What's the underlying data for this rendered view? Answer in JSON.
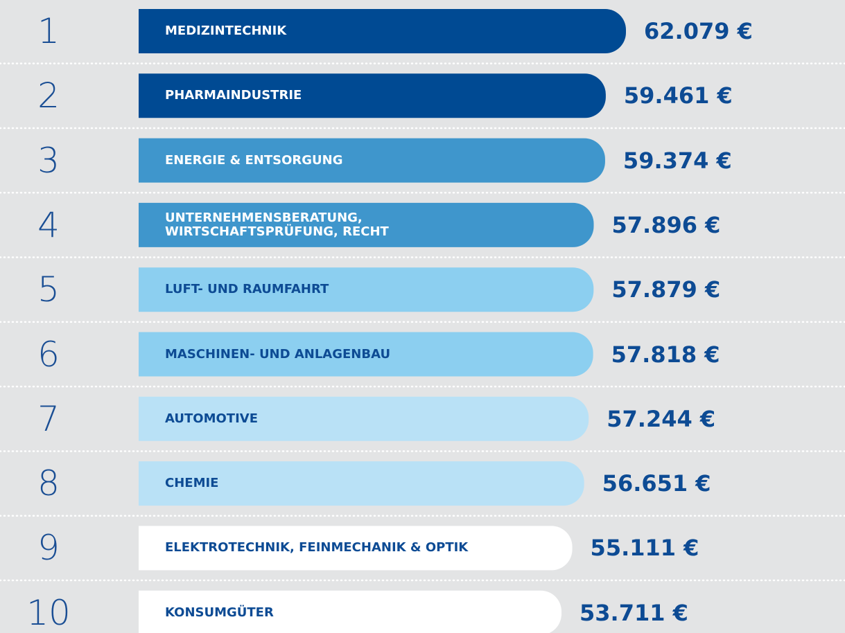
{
  "chart_data": {
    "type": "bar",
    "orientation": "horizontal",
    "ranks": [
      "1",
      "2",
      "3",
      "4",
      "5",
      "6",
      "7",
      "8",
      "9",
      "10"
    ],
    "categories": [
      "MEDIZINTECHNIK",
      "PHARMAINDUSTRIE",
      "ENERGIE & ENTSORGUNG",
      "UNTERNEHMENSBERATUNG,\nWIRTSCHAFTSPRÜFUNG, RECHT",
      "LUFT- UND RAUMFAHRT",
      "MASCHINEN- UND ANLAGENBAU",
      "AUTOMOTIVE",
      "CHEMIE",
      "ELEKTROTECHNIK, FEINMECHANIK & OPTIK",
      "KONSUMGÜTER"
    ],
    "values": [
      62079,
      59461,
      59374,
      57896,
      57879,
      57818,
      57244,
      56651,
      55111,
      53711
    ],
    "value_labels": [
      "62.079 €",
      "59.461 €",
      "59.374 €",
      "57.896 €",
      "57.879 €",
      "57.818 €",
      "57.244 €",
      "56.651 €",
      "55.111 €",
      "53.711 €"
    ],
    "colors": [
      "#004a93",
      "#004a93",
      "#3f96cc",
      "#3f96cc",
      "#8ccff0",
      "#8ccff0",
      "#b9e1f6",
      "#b9e1f6",
      "#ffffff",
      "#ffffff"
    ],
    "label_colors": [
      "#ffffff",
      "#ffffff",
      "#ffffff",
      "#ffffff",
      "#0d4b94",
      "#0d4b94",
      "#0d4b94",
      "#0d4b94",
      "#0d4b94",
      "#0d4b94"
    ]
  }
}
